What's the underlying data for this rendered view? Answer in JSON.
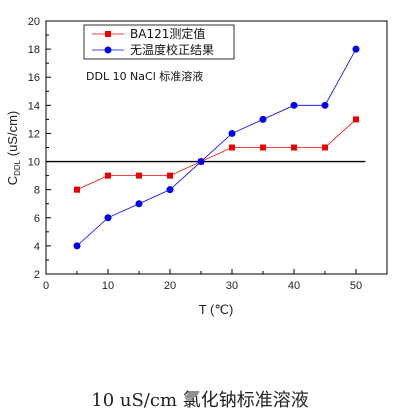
{
  "caption": "10 uS/cm 氯化钠标准溶液",
  "chart_data": {
    "type": "line",
    "xlabel": "T (℃)",
    "ylabel": "C",
    "ylabel_sub": "DDL",
    "ylabel_unit": " (uS/cm)",
    "xlim": [
      0,
      55
    ],
    "ylim": [
      2,
      20
    ],
    "xticks": [
      0,
      10,
      20,
      30,
      40,
      50
    ],
    "yticks": [
      2,
      4,
      6,
      8,
      10,
      12,
      14,
      16,
      18,
      20
    ],
    "annotation": "DDL 10 NaCl 标准溶液",
    "reference_line": {
      "y": 10,
      "color": "#000000",
      "x_range": [
        0,
        51.5
      ]
    },
    "legend_position": "top-left",
    "series": [
      {
        "name": "BA121测定值",
        "color": "#ee0000",
        "marker": "square",
        "x": [
          5,
          10,
          15,
          20,
          25,
          30,
          35,
          40,
          45,
          50
        ],
        "y": [
          8,
          9,
          9,
          9,
          10,
          11,
          11,
          11,
          11,
          13
        ]
      },
      {
        "name": "无温度校正结果",
        "color": "#0000ee",
        "marker": "circle",
        "x": [
          5,
          10,
          15,
          20,
          25,
          30,
          35,
          40,
          45,
          50
        ],
        "y": [
          4,
          6,
          7,
          8,
          10,
          12,
          13,
          14,
          14,
          18
        ]
      }
    ]
  }
}
